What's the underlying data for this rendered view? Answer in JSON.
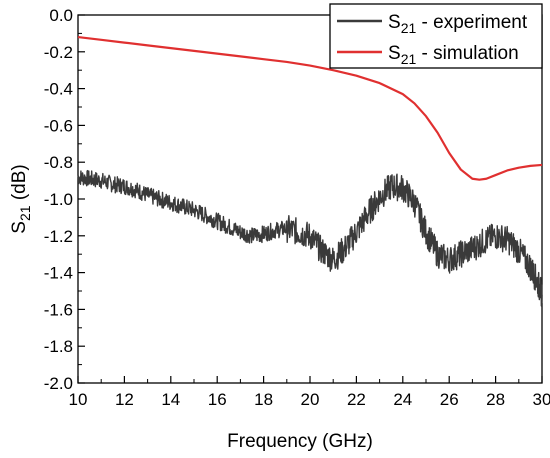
{
  "chart_data": {
    "type": "line",
    "xlabel": "Frequency (GHz)",
    "ylabel_main": "S",
    "ylabel_sub": "21",
    "ylabel_tail": " (dB)",
    "xlim": [
      10,
      30
    ],
    "ylim": [
      -2.0,
      0.0
    ],
    "x_ticks": [
      10,
      12,
      14,
      16,
      18,
      20,
      22,
      24,
      26,
      28,
      30
    ],
    "y_ticks": [
      0.0,
      -0.2,
      -0.4,
      -0.6,
      -0.8,
      -1.0,
      -1.2,
      -1.4,
      -1.6,
      -1.8,
      -2.0
    ],
    "x_tick_labels": [
      "10",
      "12",
      "14",
      "16",
      "18",
      "20",
      "22",
      "24",
      "26",
      "28",
      "30"
    ],
    "y_tick_labels": [
      "0.0",
      "-0.2",
      "-0.4",
      "-0.6",
      "-0.8",
      "-1.0",
      "-1.2",
      "-1.4",
      "-1.6",
      "-1.8",
      "-2.0"
    ],
    "grid": false,
    "legend_position": "top-right",
    "series": [
      {
        "name_main": "S",
        "name_sub": "21",
        "name_tail": " - experiment",
        "color": "#3a3a3a",
        "x": [
          10,
          10.5,
          11,
          11.5,
          12,
          12.5,
          13,
          13.5,
          14,
          14.5,
          15,
          15.5,
          16,
          16.5,
          17,
          17.5,
          18,
          18.5,
          19,
          19.5,
          20,
          20.5,
          21,
          21.5,
          22,
          22.5,
          23,
          23.5,
          24,
          24.5,
          25,
          25.5,
          26,
          26.5,
          27,
          27.5,
          28,
          28.5,
          29,
          29.5,
          29.8,
          30
        ],
        "y": [
          -0.88,
          -0.89,
          -0.9,
          -0.92,
          -0.93,
          -0.95,
          -0.98,
          -1.0,
          -1.02,
          -1.04,
          -1.06,
          -1.09,
          -1.12,
          -1.15,
          -1.18,
          -1.2,
          -1.19,
          -1.17,
          -1.16,
          -1.18,
          -1.2,
          -1.28,
          -1.33,
          -1.27,
          -1.18,
          -1.08,
          -0.99,
          -0.93,
          -0.94,
          -1.02,
          -1.18,
          -1.3,
          -1.33,
          -1.3,
          -1.27,
          -1.23,
          -1.2,
          -1.22,
          -1.28,
          -1.37,
          -1.45,
          -1.52
        ]
      },
      {
        "name_main": "S",
        "name_sub": "21",
        "name_tail": " - simulation",
        "color": "#e03030",
        "x": [
          10,
          11,
          12,
          13,
          14,
          15,
          16,
          17,
          18,
          19,
          20,
          21,
          22,
          23,
          24,
          24.5,
          25,
          25.5,
          26,
          26.5,
          27,
          27.3,
          27.6,
          28,
          28.5,
          29,
          29.5,
          30
        ],
        "y": [
          -0.12,
          -0.135,
          -0.15,
          -0.165,
          -0.18,
          -0.195,
          -0.21,
          -0.225,
          -0.24,
          -0.255,
          -0.275,
          -0.3,
          -0.33,
          -0.37,
          -0.43,
          -0.48,
          -0.55,
          -0.64,
          -0.75,
          -0.84,
          -0.89,
          -0.895,
          -0.89,
          -0.87,
          -0.845,
          -0.83,
          -0.82,
          -0.815
        ]
      }
    ]
  }
}
